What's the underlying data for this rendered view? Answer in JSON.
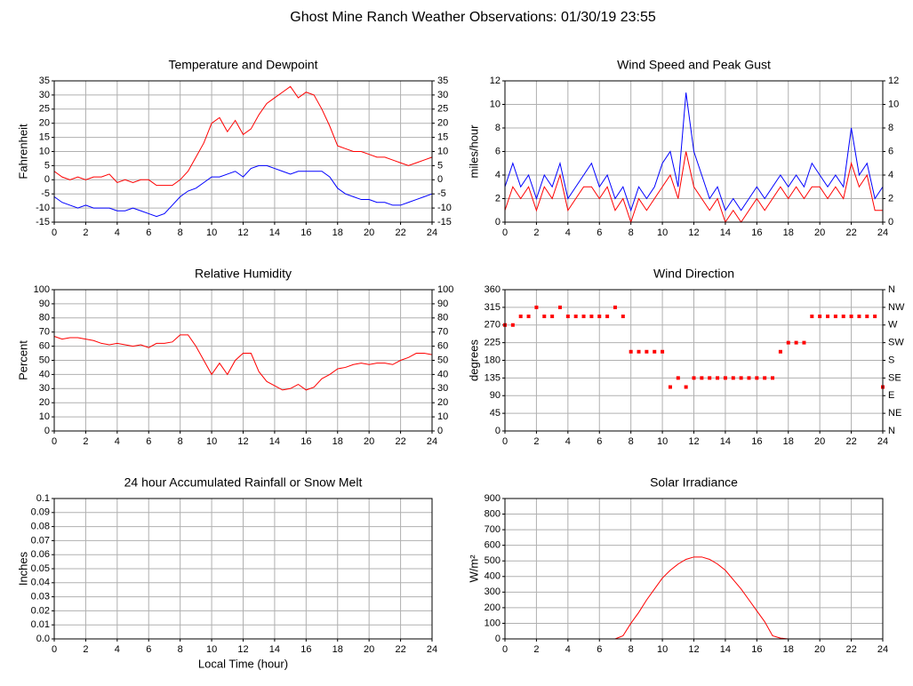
{
  "title": "Ghost Mine Ranch Weather Observations: 01/30/19 23:55",
  "chart_data": [
    {
      "type": "line",
      "title": "Temperature and Dewpoint",
      "ylabel": "Fahrenheit",
      "x": [
        0,
        0.5,
        1,
        1.5,
        2,
        2.5,
        3,
        3.5,
        4,
        4.5,
        5,
        5.5,
        6,
        6.5,
        7,
        7.5,
        8,
        8.5,
        9,
        9.5,
        10,
        10.5,
        11,
        11.5,
        12,
        12.5,
        13,
        13.5,
        14,
        14.5,
        15,
        15.5,
        16,
        16.5,
        17,
        17.5,
        18,
        18.5,
        19,
        19.5,
        20,
        20.5,
        21,
        21.5,
        22,
        22.5,
        23,
        23.5,
        24
      ],
      "series": [
        {
          "color": "#ff0000",
          "values": [
            3,
            1,
            0,
            1,
            0,
            1,
            1,
            2,
            -1,
            0,
            -1,
            0,
            0,
            -2,
            -2,
            -2,
            0,
            3,
            8,
            13,
            20,
            22,
            17,
            21,
            16,
            18,
            23,
            27,
            29,
            31,
            33,
            29,
            31,
            30,
            25,
            19,
            12,
            11,
            10,
            10,
            9,
            8,
            8,
            7,
            6,
            5,
            6,
            7,
            8
          ]
        },
        {
          "color": "#0000ff",
          "values": [
            -6,
            -8,
            -9,
            -10,
            -9,
            -10,
            -10,
            -10,
            -11,
            -11,
            -10,
            -11,
            -12,
            -13,
            -12,
            -9,
            -6,
            -4,
            -3,
            -1,
            1,
            1,
            2,
            3,
            1,
            4,
            5,
            5,
            4,
            3,
            2,
            3,
            3,
            3,
            3,
            1,
            -3,
            -5,
            -6,
            -7,
            -7,
            -8,
            -8,
            -9,
            -9,
            -8,
            -7,
            -6,
            -5
          ]
        }
      ],
      "xlim": [
        0,
        24
      ],
      "xticks": [
        0,
        2,
        4,
        6,
        8,
        10,
        12,
        14,
        16,
        18,
        20,
        22,
        24
      ],
      "ylim": [
        -15,
        35
      ],
      "yticks": [
        -15,
        -10,
        -5,
        0,
        5,
        10,
        15,
        20,
        25,
        30,
        35
      ],
      "y2lim": [
        -15,
        35
      ],
      "y2ticks": [
        -15,
        -10,
        -5,
        0,
        5,
        10,
        15,
        20,
        25,
        30,
        35
      ],
      "grid": true
    },
    {
      "type": "line",
      "title": "Wind Speed and Peak Gust",
      "ylabel": "miles/hour",
      "x": [
        0,
        0.5,
        1,
        1.5,
        2,
        2.5,
        3,
        3.5,
        4,
        4.5,
        5,
        5.5,
        6,
        6.5,
        7,
        7.5,
        8,
        8.5,
        9,
        9.5,
        10,
        10.5,
        11,
        11.5,
        12,
        12.5,
        13,
        13.5,
        14,
        14.5,
        15,
        15.5,
        16,
        16.5,
        17,
        17.5,
        18,
        18.5,
        19,
        19.5,
        20,
        20.5,
        21,
        21.5,
        22,
        22.5,
        23,
        23.5,
        24
      ],
      "series": [
        {
          "color": "#0000ff",
          "values": [
            3,
            5,
            3,
            4,
            2,
            4,
            3,
            5,
            2,
            3,
            4,
            5,
            3,
            4,
            2,
            3,
            1,
            3,
            2,
            3,
            5,
            6,
            3,
            11,
            6,
            4,
            2,
            3,
            1,
            2,
            1,
            2,
            3,
            2,
            3,
            4,
            3,
            4,
            3,
            5,
            4,
            3,
            4,
            3,
            8,
            4,
            5,
            2,
            3
          ]
        },
        {
          "color": "#ff0000",
          "values": [
            1,
            3,
            2,
            3,
            1,
            3,
            2,
            4,
            1,
            2,
            3,
            3,
            2,
            3,
            1,
            2,
            0,
            2,
            1,
            2,
            3,
            4,
            2,
            6,
            3,
            2,
            1,
            2,
            0,
            1,
            0,
            1,
            2,
            1,
            2,
            3,
            2,
            3,
            2,
            3,
            3,
            2,
            3,
            2,
            5,
            3,
            4,
            1,
            1
          ]
        }
      ],
      "xlim": [
        0,
        24
      ],
      "xticks": [
        0,
        2,
        4,
        6,
        8,
        10,
        12,
        14,
        16,
        18,
        20,
        22,
        24
      ],
      "ylim": [
        0,
        12
      ],
      "yticks": [
        0,
        2,
        4,
        6,
        8,
        10,
        12
      ],
      "y2lim": [
        0,
        12
      ],
      "y2ticks": [
        0,
        2,
        4,
        6,
        8,
        10,
        12
      ],
      "grid": true
    },
    {
      "type": "line",
      "title": "Relative Humidity",
      "ylabel": "Percent",
      "x": [
        0,
        0.5,
        1,
        1.5,
        2,
        2.5,
        3,
        3.5,
        4,
        4.5,
        5,
        5.5,
        6,
        6.5,
        7,
        7.5,
        8,
        8.5,
        9,
        9.5,
        10,
        10.5,
        11,
        11.5,
        12,
        12.5,
        13,
        13.5,
        14,
        14.5,
        15,
        15.5,
        16,
        16.5,
        17,
        17.5,
        18,
        18.5,
        19,
        19.5,
        20,
        20.5,
        21,
        21.5,
        22,
        22.5,
        23,
        23.5,
        24
      ],
      "series": [
        {
          "color": "#ff0000",
          "values": [
            67,
            65,
            66,
            66,
            65,
            64,
            62,
            61,
            62,
            61,
            60,
            61,
            59,
            62,
            62,
            63,
            68,
            68,
            60,
            50,
            40,
            48,
            40,
            50,
            55,
            55,
            42,
            35,
            32,
            29,
            30,
            33,
            29,
            31,
            37,
            40,
            44,
            45,
            47,
            48,
            47,
            48,
            48,
            47,
            50,
            52,
            55,
            55,
            54
          ]
        }
      ],
      "xlim": [
        0,
        24
      ],
      "xticks": [
        0,
        2,
        4,
        6,
        8,
        10,
        12,
        14,
        16,
        18,
        20,
        22,
        24
      ],
      "ylim": [
        0,
        100
      ],
      "yticks": [
        0,
        10,
        20,
        30,
        40,
        50,
        60,
        70,
        80,
        90,
        100
      ],
      "y2lim": [
        0,
        100
      ],
      "y2ticks": [
        0,
        10,
        20,
        30,
        40,
        50,
        60,
        70,
        80,
        90,
        100
      ],
      "grid": true
    },
    {
      "type": "scatter",
      "title": "Wind Direction",
      "ylabel": "degrees",
      "x": [
        0,
        0.5,
        1,
        1.5,
        2,
        2.5,
        3,
        3.5,
        4,
        4.5,
        5,
        5.5,
        6,
        6.5,
        7,
        7.5,
        8,
        8.5,
        9,
        9.5,
        10,
        10.5,
        11,
        11.5,
        12,
        12.5,
        13,
        13.5,
        14,
        14.5,
        15,
        15.5,
        16,
        16.5,
        17,
        17.5,
        18,
        18.5,
        19,
        19.5,
        20,
        20.5,
        21,
        21.5,
        22,
        22.5,
        23,
        23.5,
        24
      ],
      "series": [
        {
          "color": "#ff0000",
          "values": [
            270,
            270,
            292,
            292,
            315,
            292,
            292,
            315,
            292,
            292,
            292,
            292,
            292,
            292,
            315,
            292,
            202,
            202,
            202,
            202,
            202,
            112,
            135,
            112,
            135,
            135,
            135,
            135,
            135,
            135,
            135,
            135,
            135,
            135,
            135,
            202,
            225,
            225,
            225,
            292,
            292,
            292,
            292,
            292,
            292,
            292,
            292,
            292,
            112
          ]
        }
      ],
      "xlim": [
        0,
        24
      ],
      "xticks": [
        0,
        2,
        4,
        6,
        8,
        10,
        12,
        14,
        16,
        18,
        20,
        22,
        24
      ],
      "ylim": [
        0,
        360
      ],
      "yticks": [
        0,
        45,
        90,
        135,
        180,
        225,
        270,
        315,
        360
      ],
      "y2lim": [
        0,
        360
      ],
      "y2ticks": [
        {
          "value": 0,
          "label": "N"
        },
        {
          "value": 45,
          "label": "NE"
        },
        {
          "value": 90,
          "label": "E"
        },
        {
          "value": 135,
          "label": "SE"
        },
        {
          "value": 180,
          "label": "S"
        },
        {
          "value": 225,
          "label": "SW"
        },
        {
          "value": 270,
          "label": "W"
        },
        {
          "value": 315,
          "label": "NW"
        },
        {
          "value": 360,
          "label": "N"
        }
      ],
      "grid": true
    },
    {
      "type": "line",
      "title": "24 hour Accumulated Rainfall or Snow Melt",
      "ylabel": "Inches",
      "xlabel": "Local Time (hour)",
      "x": [
        0,
        24
      ],
      "series": [
        {
          "color": "#ff0000",
          "values": [
            0,
            0
          ]
        }
      ],
      "xlim": [
        0,
        24
      ],
      "xticks": [
        0,
        2,
        4,
        6,
        8,
        10,
        12,
        14,
        16,
        18,
        20,
        22,
        24
      ],
      "ylim": [
        0,
        0.1
      ],
      "yticks": [
        {
          "value": 0,
          "label": "0.0"
        },
        0.01,
        0.02,
        0.03,
        0.04,
        0.05,
        0.06,
        0.07,
        0.08,
        0.09,
        0.1
      ],
      "grid": true
    },
    {
      "type": "line",
      "title": "Solar Irradiance",
      "ylabel": "W/m²",
      "x": [
        0,
        0.5,
        1,
        1.5,
        2,
        2.5,
        3,
        3.5,
        4,
        4.5,
        5,
        5.5,
        6,
        6.5,
        7,
        7.5,
        8,
        8.5,
        9,
        9.5,
        10,
        10.5,
        11,
        11.5,
        12,
        12.5,
        13,
        13.5,
        14,
        14.5,
        15,
        15.5,
        16,
        16.5,
        17,
        17.5,
        18,
        18.5,
        19,
        19.5,
        20,
        20.5,
        21,
        21.5,
        22,
        22.5,
        23,
        23.5,
        24
      ],
      "series": [
        {
          "color": "#ff0000",
          "values": [
            0,
            0,
            0,
            0,
            0,
            0,
            0,
            0,
            0,
            0,
            0,
            0,
            0,
            0,
            0,
            20,
            100,
            170,
            250,
            320,
            390,
            440,
            480,
            510,
            525,
            525,
            510,
            480,
            440,
            380,
            320,
            250,
            180,
            110,
            20,
            5,
            0,
            0,
            0,
            0,
            0,
            0,
            0,
            0,
            0,
            0,
            0,
            0,
            0
          ]
        }
      ],
      "xlim": [
        0,
        24
      ],
      "xticks": [
        0,
        2,
        4,
        6,
        8,
        10,
        12,
        14,
        16,
        18,
        20,
        22,
        24
      ],
      "ylim": [
        0,
        900
      ],
      "yticks": [
        0,
        100,
        200,
        300,
        400,
        500,
        600,
        700,
        800,
        900
      ],
      "grid": true
    }
  ]
}
